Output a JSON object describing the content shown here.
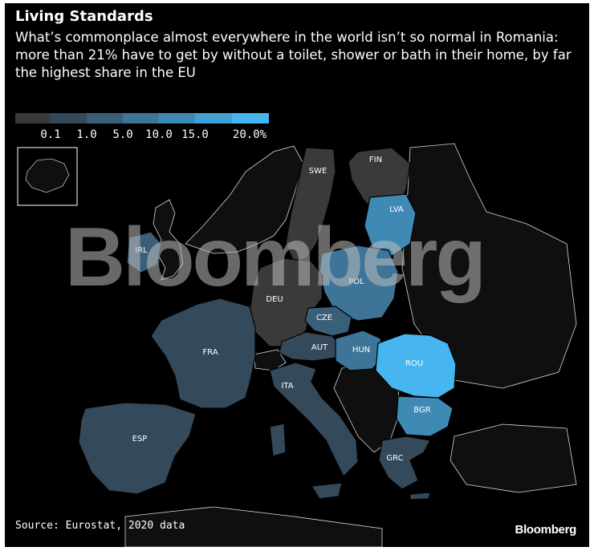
{
  "title": "Living Standards",
  "subtitle": "What’s commonplace almost everywhere in the world isn’t so normal in Romania: more than 21% have to get by without a toilet, shower or bath in their home, by far the highest share in the EU",
  "legend": {
    "ticks": [
      "0.1",
      "1.0",
      "5.0",
      "10.0",
      "15.0",
      "20.0%"
    ],
    "colors": [
      "#3a3a3a",
      "#34495a",
      "#3a5f78",
      "#3d7497",
      "#3f8ab5",
      "#42a0d4",
      "#47b6f0"
    ]
  },
  "countries": [
    {
      "code": "SWE",
      "color": "#3a3a3a"
    },
    {
      "code": "FIN",
      "color": "#3a3a3a"
    },
    {
      "code": "LVA",
      "color": "#3f8ab5"
    },
    {
      "code": "IRL",
      "color": "#3a5f78"
    },
    {
      "code": "POL",
      "color": "#3d7497"
    },
    {
      "code": "DEU",
      "color": "#3a3a3a"
    },
    {
      "code": "CZE",
      "color": "#3a5f78"
    },
    {
      "code": "FRA",
      "color": "#34495a"
    },
    {
      "code": "AUT",
      "color": "#34495a"
    },
    {
      "code": "HUN",
      "color": "#3d7497"
    },
    {
      "code": "ROU",
      "color": "#47b6f0"
    },
    {
      "code": "ITA",
      "color": "#34495a"
    },
    {
      "code": "BGR",
      "color": "#3f8ab5"
    },
    {
      "code": "ESP",
      "color": "#34495a"
    },
    {
      "code": "GRC",
      "color": "#34495a"
    }
  ],
  "no_data_color": "#0f0f0f",
  "watermark": "Bloomberg",
  "source": "Source: Eurostat, 2020 data",
  "brand": "Bloomberg"
}
